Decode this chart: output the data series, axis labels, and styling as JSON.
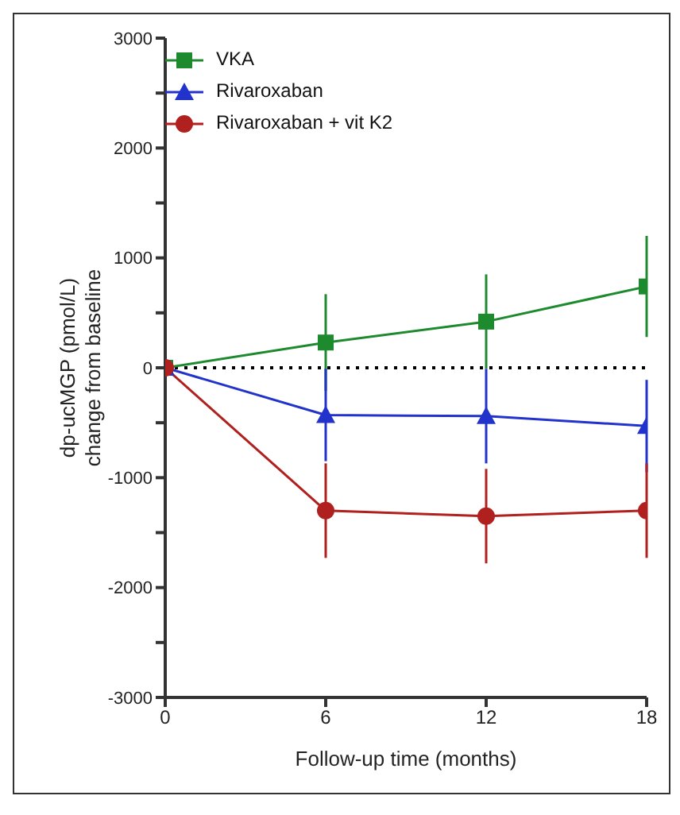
{
  "chart_data": {
    "type": "line",
    "xlabel": "Follow-up time (months)",
    "ylabel": "dp-ucMGP (pmol/L)\nchange from baseline",
    "x": [
      0,
      6,
      12,
      18
    ],
    "xlim": [
      0,
      18
    ],
    "xticks": [
      0,
      6,
      12,
      18
    ],
    "ylim": [
      -3000,
      3000
    ],
    "yticks": [
      -3000,
      {
        "value": -2500,
        "label": null
      },
      -2000,
      {
        "value": -1500,
        "label": null
      },
      -1000,
      {
        "value": -500,
        "label": null
      },
      0,
      {
        "value": 500,
        "label": null
      },
      1000,
      {
        "value": 1500,
        "label": null
      },
      2000,
      {
        "value": 2500,
        "label": null
      },
      3000
    ],
    "legend": "top left",
    "ref_lines": [
      {
        "axis": "y",
        "value": 0,
        "line_style": "dotted",
        "color": "#000000"
      }
    ],
    "series": [
      {
        "name": "VKA",
        "color": "#1e8a2e",
        "marker": "square",
        "values": [
          0,
          230,
          420,
          740
        ],
        "errors": [
          null,
          440,
          430,
          460
        ]
      },
      {
        "name": "Rivaroxaban",
        "color": "#2233cc",
        "marker": "triangle",
        "values": [
          0,
          -430,
          -440,
          -530
        ],
        "errors": [
          null,
          420,
          430,
          420
        ]
      },
      {
        "name": "Rivaroxaban + vit K2",
        "color": "#b0201e",
        "marker": "circle",
        "values": [
          0,
          -1300,
          -1350,
          -1300
        ],
        "errors": [
          null,
          430,
          430,
          430
        ]
      }
    ]
  }
}
